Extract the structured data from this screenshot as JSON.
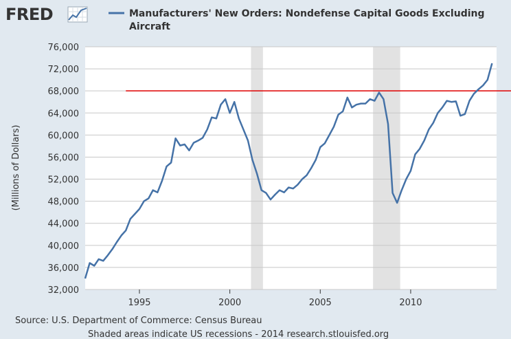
{
  "logo": {
    "text": "FRED"
  },
  "colors": {
    "background": "#e1e9f0",
    "plot_background": "#ffffff",
    "series": "#4572a7",
    "reference_line": "#e00000",
    "recession": "#e2e2e2",
    "grid": "#c8c8c8"
  },
  "chart_data": {
    "type": "line",
    "title_line1": "Manufacturers' New Orders: Nondefense Capital Goods Excluding",
    "title_line2": "Aircraft",
    "ylabel": "(Millions of Dollars)",
    "xlabel": "",
    "xlim": [
      1992.0,
      2014.75
    ],
    "ylim": [
      32000,
      76000
    ],
    "y_ticks": [
      32000,
      36000,
      40000,
      44000,
      48000,
      52000,
      56000,
      60000,
      64000,
      68000,
      72000,
      76000
    ],
    "y_tick_labels": [
      "32,000",
      "36,000",
      "40,000",
      "44,000",
      "48,000",
      "52,000",
      "56,000",
      "60,000",
      "64,000",
      "68,000",
      "72,000",
      "76,000"
    ],
    "x_ticks": [
      1995,
      2000,
      2005,
      2010
    ],
    "x_tick_labels": [
      "1995",
      "2000",
      "2005",
      "2010"
    ],
    "recessions": [
      [
        2001.17,
        2001.83
      ],
      [
        2007.92,
        2009.42
      ]
    ],
    "reference_line": {
      "value": 68000,
      "x_start": 1994.25
    },
    "legend": "Manufacturers' New Orders: Nondefense Capital Goods Excluding Aircraft",
    "series": [
      {
        "name": "Manufacturers' New Orders: Nondefense Capital Goods Excluding Aircraft",
        "x": [
          1992.0,
          1992.25,
          1992.5,
          1992.75,
          1993.0,
          1993.25,
          1993.5,
          1993.75,
          1994.0,
          1994.25,
          1994.5,
          1994.75,
          1995.0,
          1995.25,
          1995.5,
          1995.75,
          1996.0,
          1996.25,
          1996.5,
          1996.75,
          1997.0,
          1997.25,
          1997.5,
          1997.75,
          1998.0,
          1998.25,
          1998.5,
          1998.75,
          1999.0,
          1999.25,
          1999.5,
          1999.75,
          2000.0,
          2000.25,
          2000.5,
          2000.75,
          2001.0,
          2001.25,
          2001.5,
          2001.75,
          2002.0,
          2002.25,
          2002.5,
          2002.75,
          2003.0,
          2003.25,
          2003.5,
          2003.75,
          2004.0,
          2004.25,
          2004.5,
          2004.75,
          2005.0,
          2005.25,
          2005.5,
          2005.75,
          2006.0,
          2006.25,
          2006.5,
          2006.75,
          2007.0,
          2007.25,
          2007.5,
          2007.75,
          2008.0,
          2008.25,
          2008.5,
          2008.75,
          2009.0,
          2009.25,
          2009.5,
          2009.75,
          2010.0,
          2010.25,
          2010.5,
          2010.75,
          2011.0,
          2011.25,
          2011.5,
          2011.75,
          2012.0,
          2012.25,
          2012.5,
          2012.75,
          2013.0,
          2013.25,
          2013.5,
          2013.75,
          2014.0,
          2014.25,
          2014.5
        ],
        "values": [
          34000,
          36800,
          36300,
          37500,
          37200,
          38200,
          39300,
          40600,
          41800,
          42700,
          44800,
          45700,
          46600,
          48000,
          48500,
          50000,
          49600,
          51700,
          54300,
          55000,
          59400,
          58100,
          58300,
          57200,
          58600,
          59000,
          59500,
          61000,
          63200,
          63000,
          65500,
          66500,
          64000,
          66000,
          63000,
          61000,
          59000,
          55500,
          53000,
          50000,
          49500,
          48300,
          49200,
          50000,
          49600,
          50500,
          50300,
          51000,
          52000,
          52700,
          54000,
          55500,
          57800,
          58500,
          60000,
          61500,
          63700,
          64300,
          66800,
          65000,
          65500,
          65700,
          65700,
          66500,
          66200,
          67700,
          66500,
          62000,
          49500,
          47700,
          50000,
          52000,
          53500,
          56500,
          57500,
          59000,
          61000,
          62200,
          64000,
          65000,
          66200,
          66000,
          66100,
          63500,
          63800,
          66200,
          67500,
          68300,
          69000,
          70000,
          73000
        ]
      }
    ]
  },
  "footer": {
    "source": "Source: U.S. Department of Commerce: Census Bureau",
    "note": "Shaded areas indicate US recessions - 2014 research.stlouisfed.org"
  }
}
